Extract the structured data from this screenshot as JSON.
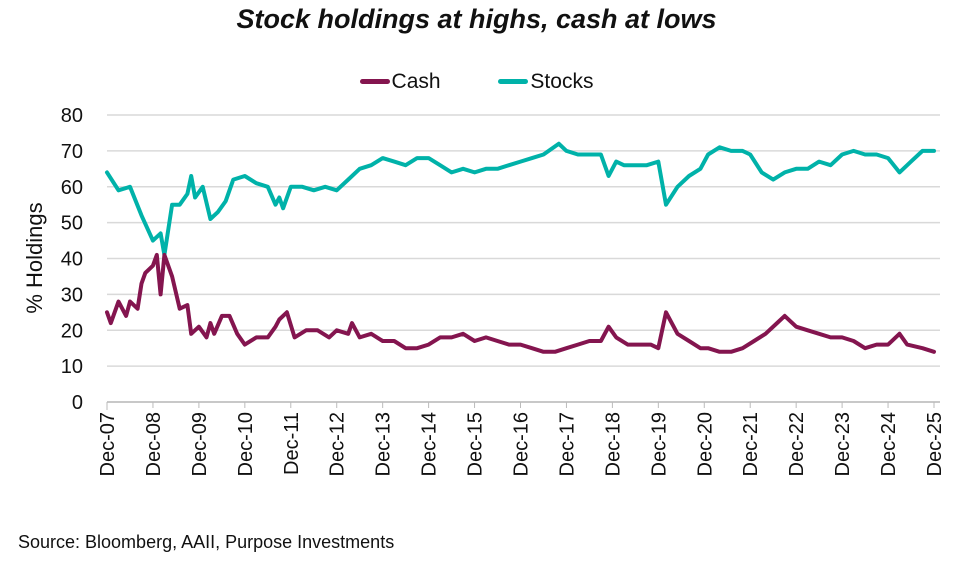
{
  "chart_data": {
    "type": "line",
    "title": "Stock holdings at highs, cash at lows",
    "ylabel": "% Holdings",
    "xlabel": "",
    "ylim": [
      0,
      80
    ],
    "yticks": [
      0,
      10,
      20,
      30,
      40,
      50,
      60,
      70,
      80
    ],
    "xticks": [
      "Dec-07",
      "Dec-08",
      "Dec-09",
      "Dec-10",
      "Dec-11",
      "Dec-12",
      "Dec-13",
      "Dec-14",
      "Dec-15",
      "Dec-16",
      "Dec-17",
      "Dec-18",
      "Dec-19",
      "Dec-20",
      "Dec-21",
      "Dec-22",
      "Dec-23",
      "Dec-24",
      "Dec-25"
    ],
    "grid": "horizontal",
    "legend_position": "top",
    "source": "Source: Bloomberg, AAII, Purpose Investments",
    "series": [
      {
        "name": "Cash",
        "color": "#84154f",
        "points": [
          [
            "2007-12",
            25
          ],
          [
            "2008-01",
            22
          ],
          [
            "2008-03",
            28
          ],
          [
            "2008-05",
            24
          ],
          [
            "2008-06",
            28
          ],
          [
            "2008-08",
            26
          ],
          [
            "2008-09",
            33
          ],
          [
            "2008-10",
            36
          ],
          [
            "2008-12",
            38
          ],
          [
            "2009-01",
            41
          ],
          [
            "2009-02",
            30
          ],
          [
            "2009-03",
            41
          ],
          [
            "2009-05",
            35
          ],
          [
            "2009-07",
            26
          ],
          [
            "2009-09",
            27
          ],
          [
            "2009-10",
            19
          ],
          [
            "2009-12",
            21
          ],
          [
            "2010-02",
            18
          ],
          [
            "2010-03",
            22
          ],
          [
            "2010-04",
            19
          ],
          [
            "2010-06",
            24
          ],
          [
            "2010-08",
            24
          ],
          [
            "2010-10",
            19
          ],
          [
            "2010-12",
            16
          ],
          [
            "2011-03",
            18
          ],
          [
            "2011-06",
            18
          ],
          [
            "2011-08",
            21
          ],
          [
            "2011-09",
            23
          ],
          [
            "2011-11",
            25
          ],
          [
            "2012-01",
            18
          ],
          [
            "2012-04",
            20
          ],
          [
            "2012-07",
            20
          ],
          [
            "2012-10",
            18
          ],
          [
            "2012-12",
            20
          ],
          [
            "2013-03",
            19
          ],
          [
            "2013-04",
            22
          ],
          [
            "2013-06",
            18
          ],
          [
            "2013-09",
            19
          ],
          [
            "2013-12",
            17
          ],
          [
            "2014-03",
            17
          ],
          [
            "2014-06",
            15
          ],
          [
            "2014-09",
            15
          ],
          [
            "2014-12",
            16
          ],
          [
            "2015-03",
            18
          ],
          [
            "2015-06",
            18
          ],
          [
            "2015-09",
            19
          ],
          [
            "2015-12",
            17
          ],
          [
            "2016-03",
            18
          ],
          [
            "2016-06",
            17
          ],
          [
            "2016-09",
            16
          ],
          [
            "2016-12",
            16
          ],
          [
            "2017-03",
            15
          ],
          [
            "2017-06",
            14
          ],
          [
            "2017-09",
            14
          ],
          [
            "2017-12",
            15
          ],
          [
            "2018-03",
            16
          ],
          [
            "2018-06",
            17
          ],
          [
            "2018-09",
            17
          ],
          [
            "2018-11",
            21
          ],
          [
            "2019-01",
            18
          ],
          [
            "2019-04",
            16
          ],
          [
            "2019-07",
            16
          ],
          [
            "2019-10",
            16
          ],
          [
            "2019-12",
            15
          ],
          [
            "2020-02",
            25
          ],
          [
            "2020-05",
            19
          ],
          [
            "2020-08",
            17
          ],
          [
            "2020-11",
            15
          ],
          [
            "2021-01",
            15
          ],
          [
            "2021-04",
            14
          ],
          [
            "2021-07",
            14
          ],
          [
            "2021-10",
            15
          ],
          [
            "2022-01",
            17
          ],
          [
            "2022-04",
            19
          ],
          [
            "2022-07",
            22
          ],
          [
            "2022-09",
            24
          ],
          [
            "2022-12",
            21
          ],
          [
            "2023-03",
            20
          ],
          [
            "2023-06",
            19
          ],
          [
            "2023-09",
            18
          ],
          [
            "2023-12",
            18
          ],
          [
            "2024-03",
            17
          ],
          [
            "2024-06",
            15
          ],
          [
            "2024-09",
            16
          ],
          [
            "2024-12",
            16
          ],
          [
            "2025-03",
            19
          ],
          [
            "2025-05",
            16
          ],
          [
            "2025-09",
            15
          ],
          [
            "2025-12",
            14
          ]
        ]
      },
      {
        "name": "Stocks",
        "color": "#00b2a9",
        "points": [
          [
            "2007-12",
            64
          ],
          [
            "2008-03",
            59
          ],
          [
            "2008-06",
            60
          ],
          [
            "2008-09",
            52
          ],
          [
            "2008-12",
            45
          ],
          [
            "2009-02",
            47
          ],
          [
            "2009-03",
            41
          ],
          [
            "2009-05",
            55
          ],
          [
            "2009-07",
            55
          ],
          [
            "2009-09",
            58
          ],
          [
            "2009-10",
            63
          ],
          [
            "2009-11",
            57
          ],
          [
            "2010-01",
            60
          ],
          [
            "2010-03",
            51
          ],
          [
            "2010-05",
            53
          ],
          [
            "2010-07",
            56
          ],
          [
            "2010-09",
            62
          ],
          [
            "2010-12",
            63
          ],
          [
            "2011-03",
            61
          ],
          [
            "2011-06",
            60
          ],
          [
            "2011-08",
            55
          ],
          [
            "2011-09",
            57
          ],
          [
            "2011-10",
            54
          ],
          [
            "2011-12",
            60
          ],
          [
            "2012-03",
            60
          ],
          [
            "2012-06",
            59
          ],
          [
            "2012-09",
            60
          ],
          [
            "2012-12",
            59
          ],
          [
            "2013-03",
            62
          ],
          [
            "2013-06",
            65
          ],
          [
            "2013-09",
            66
          ],
          [
            "2013-12",
            68
          ],
          [
            "2014-03",
            67
          ],
          [
            "2014-06",
            66
          ],
          [
            "2014-09",
            68
          ],
          [
            "2014-12",
            68
          ],
          [
            "2015-03",
            66
          ],
          [
            "2015-06",
            64
          ],
          [
            "2015-09",
            65
          ],
          [
            "2015-12",
            64
          ],
          [
            "2016-03",
            65
          ],
          [
            "2016-06",
            65
          ],
          [
            "2016-09",
            66
          ],
          [
            "2016-12",
            67
          ],
          [
            "2017-03",
            68
          ],
          [
            "2017-06",
            69
          ],
          [
            "2017-10",
            72
          ],
          [
            "2017-12",
            70
          ],
          [
            "2018-03",
            69
          ],
          [
            "2018-06",
            69
          ],
          [
            "2018-09",
            69
          ],
          [
            "2018-11",
            63
          ],
          [
            "2019-01",
            67
          ],
          [
            "2019-03",
            66
          ],
          [
            "2019-06",
            66
          ],
          [
            "2019-09",
            66
          ],
          [
            "2019-12",
            67
          ],
          [
            "2020-02",
            55
          ],
          [
            "2020-05",
            60
          ],
          [
            "2020-08",
            63
          ],
          [
            "2020-11",
            65
          ],
          [
            "2021-01",
            69
          ],
          [
            "2021-04",
            71
          ],
          [
            "2021-07",
            70
          ],
          [
            "2021-10",
            70
          ],
          [
            "2021-12",
            69
          ],
          [
            "2022-03",
            64
          ],
          [
            "2022-06",
            62
          ],
          [
            "2022-09",
            64
          ],
          [
            "2022-12",
            65
          ],
          [
            "2023-03",
            65
          ],
          [
            "2023-06",
            67
          ],
          [
            "2023-09",
            66
          ],
          [
            "2023-12",
            69
          ],
          [
            "2024-03",
            70
          ],
          [
            "2024-06",
            69
          ],
          [
            "2024-09",
            69
          ],
          [
            "2024-12",
            68
          ],
          [
            "2025-03",
            64
          ],
          [
            "2025-06",
            67
          ],
          [
            "2025-09",
            70
          ],
          [
            "2025-12",
            70
          ]
        ]
      }
    ]
  }
}
